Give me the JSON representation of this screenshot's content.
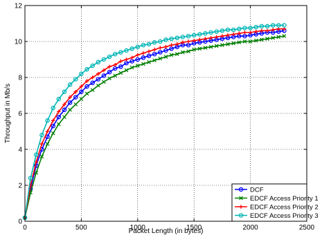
{
  "chart_data": {
    "type": "line",
    "title": "",
    "xlabel": "Packet Length (in bytes)",
    "ylabel": "Throughput in Mb/s",
    "xlim": [
      0,
      2500
    ],
    "ylim": [
      0,
      12
    ],
    "xticks": [
      "0",
      "500",
      "1000",
      "1500",
      "2000",
      "2500"
    ],
    "yticks": [
      "0",
      "2",
      "4",
      "6",
      "8",
      "10",
      "12"
    ],
    "grid": true,
    "legend_position": "bottom-right",
    "x": [
      0,
      50,
      100,
      150,
      200,
      250,
      300,
      350,
      400,
      450,
      500,
      550,
      600,
      650,
      700,
      750,
      800,
      850,
      900,
      950,
      1000,
      1050,
      1100,
      1150,
      1200,
      1250,
      1300,
      1350,
      1400,
      1450,
      1500,
      1550,
      1600,
      1650,
      1700,
      1750,
      1800,
      1850,
      1900,
      1950,
      2000,
      2050,
      2100,
      2150,
      2200,
      2250,
      2300
    ],
    "series": [
      {
        "name": "DCF",
        "color": "#0000ff",
        "marker": "circle",
        "values": [
          0.2,
          1.8,
          3.1,
          4.0,
          4.7,
          5.3,
          5.8,
          6.2,
          6.6,
          6.9,
          7.2,
          7.5,
          7.7,
          7.9,
          8.1,
          8.3,
          8.5,
          8.6,
          8.8,
          8.9,
          9.0,
          9.1,
          9.2,
          9.3,
          9.4,
          9.5,
          9.6,
          9.7,
          9.8,
          9.8,
          9.9,
          9.95,
          10.0,
          10.05,
          10.1,
          10.15,
          10.2,
          10.25,
          10.3,
          10.3,
          10.35,
          10.4,
          10.45,
          10.5,
          10.5,
          10.55,
          10.6
        ]
      },
      {
        "name": "EDCF Access Priority 1",
        "color": "#007f00",
        "marker": "x",
        "values": [
          0.2,
          1.6,
          2.7,
          3.6,
          4.3,
          4.9,
          5.4,
          5.8,
          6.2,
          6.5,
          6.8,
          7.1,
          7.3,
          7.55,
          7.75,
          7.95,
          8.1,
          8.25,
          8.4,
          8.55,
          8.65,
          8.75,
          8.85,
          8.95,
          9.05,
          9.15,
          9.25,
          9.3,
          9.4,
          9.45,
          9.55,
          9.6,
          9.65,
          9.7,
          9.75,
          9.8,
          9.85,
          9.9,
          9.95,
          10.0,
          10.0,
          10.05,
          10.1,
          10.15,
          10.2,
          10.25,
          10.3
        ]
      },
      {
        "name": "EDCF Access Priority 2",
        "color": "#ff0000",
        "marker": "plus",
        "values": [
          0.2,
          2.0,
          3.3,
          4.3,
          5.0,
          5.6,
          6.1,
          6.5,
          6.9,
          7.2,
          7.5,
          7.8,
          8.0,
          8.2,
          8.4,
          8.6,
          8.7,
          8.9,
          9.0,
          9.1,
          9.25,
          9.35,
          9.45,
          9.55,
          9.65,
          9.7,
          9.8,
          9.85,
          9.95,
          10.0,
          10.05,
          10.1,
          10.15,
          10.2,
          10.25,
          10.3,
          10.35,
          10.4,
          10.45,
          10.5,
          10.5,
          10.55,
          10.6,
          10.6,
          10.65,
          10.7,
          10.7
        ]
      },
      {
        "name": "EDCF Access Priority 3",
        "color": "#00b5b5",
        "marker": "circle",
        "values": [
          0.2,
          2.4,
          3.7,
          4.8,
          5.6,
          6.3,
          6.8,
          7.2,
          7.6,
          7.9,
          8.2,
          8.45,
          8.65,
          8.85,
          9.0,
          9.15,
          9.3,
          9.4,
          9.5,
          9.6,
          9.7,
          9.8,
          9.85,
          9.95,
          10.0,
          10.1,
          10.15,
          10.2,
          10.25,
          10.3,
          10.35,
          10.4,
          10.45,
          10.5,
          10.55,
          10.6,
          10.65,
          10.65,
          10.7,
          10.75,
          10.75,
          10.8,
          10.85,
          10.85,
          10.9,
          10.9,
          10.9
        ]
      }
    ]
  }
}
